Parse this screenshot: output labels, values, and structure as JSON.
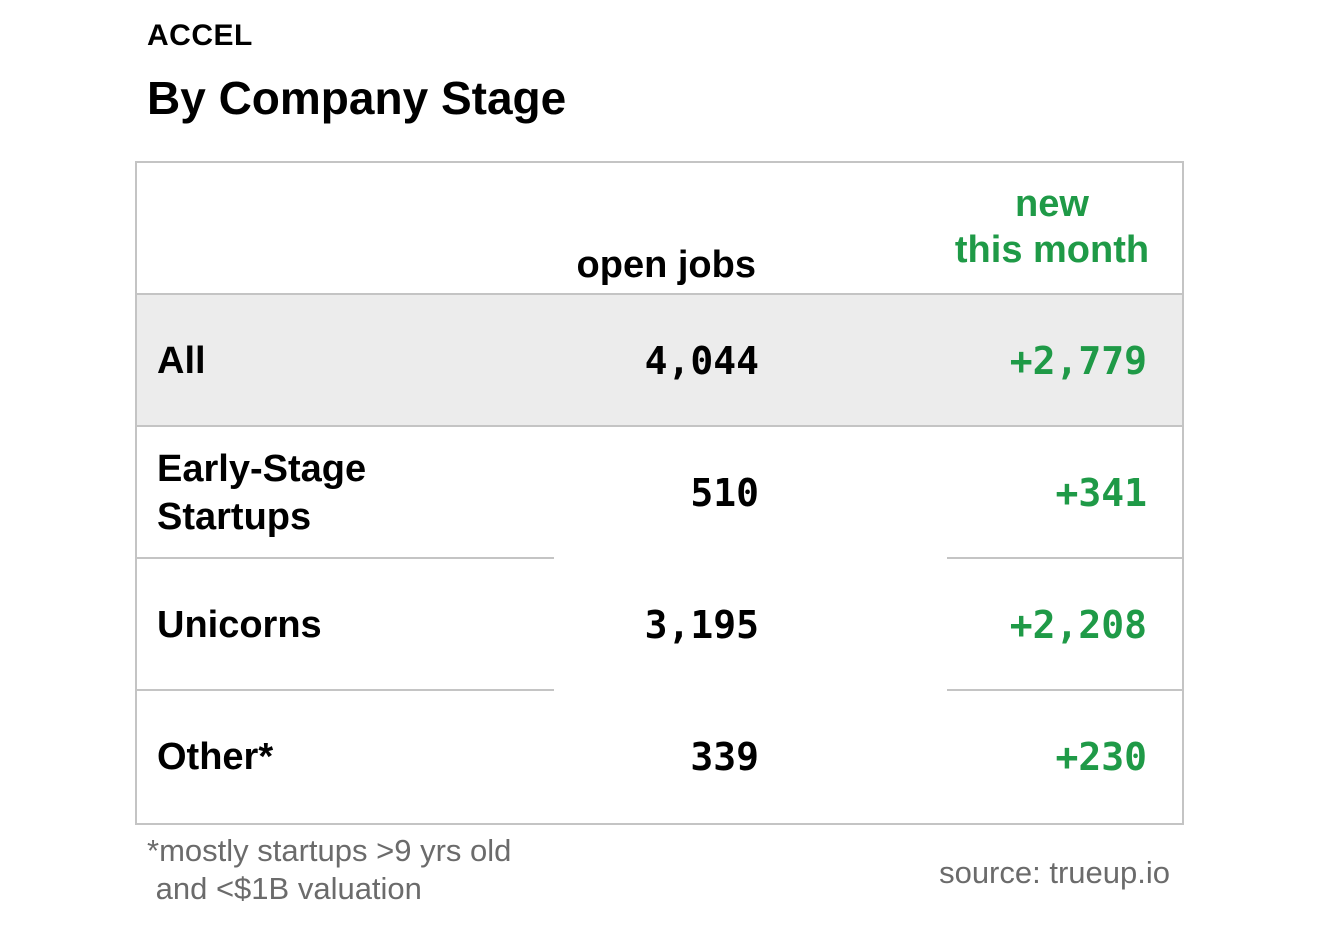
{
  "kicker": "ACCEL",
  "title": "By Company Stage",
  "footnote": "*mostly startups >9 yrs old\n and <$1B valuation",
  "source": "source: trueup.io",
  "colors": {
    "positive": "#1f9a47",
    "header_row_bg": "#ececec",
    "border": "#c4c4c4",
    "muted_text": "#6b6b6b"
  },
  "chart_data": {
    "type": "table",
    "title": "By Company Stage",
    "columns": [
      "",
      "open jobs",
      "new this month"
    ],
    "new_header_lines": [
      "new",
      "this month"
    ],
    "rows": [
      {
        "label": "All",
        "open_jobs": "4,044",
        "new_this_month": "+2,779"
      },
      {
        "label": "Early-Stage Startups",
        "open_jobs": "510",
        "new_this_month": "+341"
      },
      {
        "label": "Unicorns",
        "open_jobs": "3,195",
        "new_this_month": "+2,208"
      },
      {
        "label": "Other*",
        "open_jobs": "339",
        "new_this_month": "+230"
      }
    ]
  }
}
